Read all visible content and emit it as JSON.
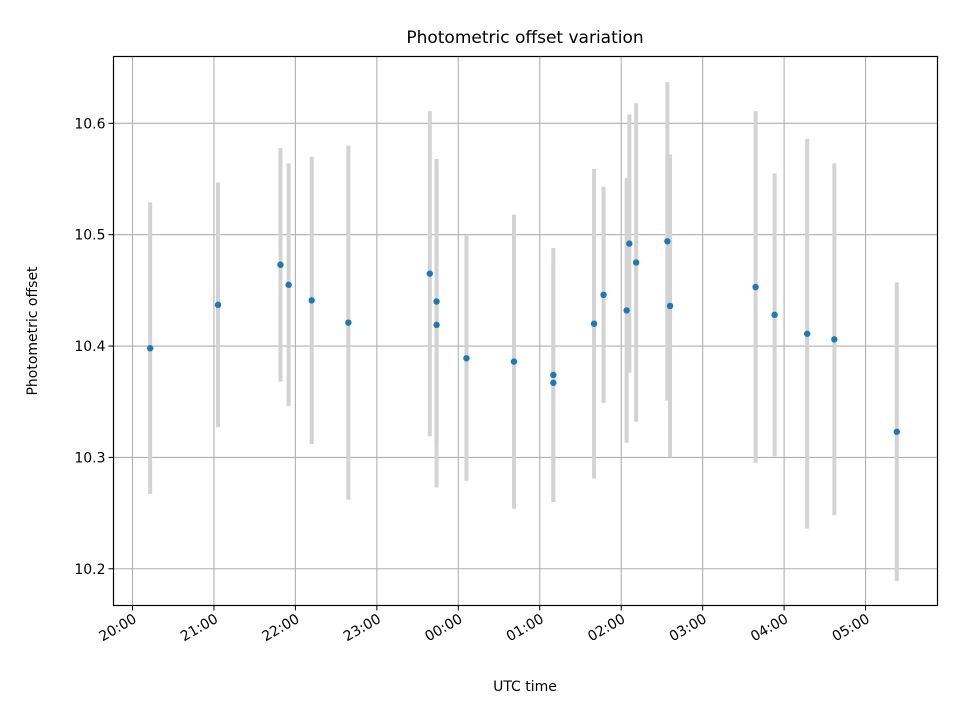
{
  "chart_data": {
    "type": "scatter",
    "title": "Photometric offset variation",
    "xlabel": "UTC time",
    "ylabel": "Photometric offset",
    "x_tick_labels": [
      "20:00",
      "21:00",
      "22:00",
      "23:00",
      "00:00",
      "01:00",
      "02:00",
      "03:00",
      "04:00",
      "05:00"
    ],
    "x_ticks": [
      "20:00",
      "21:00",
      "22:00",
      "23:00",
      "00:00",
      "01:00",
      "02:00",
      "03:00",
      "04:00",
      "05:00"
    ],
    "xlim": [
      "19:46",
      "05:53"
    ],
    "y_ticks": [
      10.2,
      10.3,
      10.4,
      10.5,
      10.6
    ],
    "y_tick_labels": [
      "10.2",
      "10.3",
      "10.4",
      "10.5",
      "10.6"
    ],
    "ylim": [
      10.167,
      10.66
    ],
    "grid": true,
    "point_color": "#1f77b4",
    "errorbar_color": "#d3d3d3",
    "points": [
      {
        "x": "20:13",
        "y": 10.398,
        "yerr": 0.131
      },
      {
        "x": "21:03",
        "y": 10.437,
        "yerr": 0.11
      },
      {
        "x": "21:49",
        "y": 10.473,
        "yerr": 0.105
      },
      {
        "x": "21:55",
        "y": 10.455,
        "yerr": 0.109
      },
      {
        "x": "22:12",
        "y": 10.441,
        "yerr": 0.129
      },
      {
        "x": "22:39",
        "y": 10.421,
        "yerr": 0.159
      },
      {
        "x": "23:39",
        "y": 10.465,
        "yerr": 0.146
      },
      {
        "x": "23:44",
        "y": 10.44,
        "yerr": 0.128
      },
      {
        "x": "23:44",
        "y": 10.419,
        "yerr": 0.146
      },
      {
        "x": "00:06",
        "y": 10.389,
        "yerr": 0.11
      },
      {
        "x": "00:41",
        "y": 10.386,
        "yerr": 0.132
      },
      {
        "x": "01:10",
        "y": 10.374,
        "yerr": 0.114
      },
      {
        "x": "01:10",
        "y": 10.367,
        "yerr": 0.107
      },
      {
        "x": "01:40",
        "y": 10.42,
        "yerr": 0.139
      },
      {
        "x": "01:47",
        "y": 10.446,
        "yerr": 0.097
      },
      {
        "x": "02:04",
        "y": 10.432,
        "yerr": 0.119
      },
      {
        "x": "02:06",
        "y": 10.492,
        "yerr": 0.116
      },
      {
        "x": "02:11",
        "y": 10.475,
        "yerr": 0.143
      },
      {
        "x": "02:34",
        "y": 10.494,
        "yerr": 0.143
      },
      {
        "x": "02:36",
        "y": 10.436,
        "yerr": 0.136
      },
      {
        "x": "03:39",
        "y": 10.453,
        "yerr": 0.158
      },
      {
        "x": "03:53",
        "y": 10.428,
        "yerr": 0.127
      },
      {
        "x": "04:17",
        "y": 10.411,
        "yerr": 0.175
      },
      {
        "x": "04:37",
        "y": 10.406,
        "yerr": 0.158
      },
      {
        "x": "05:23",
        "y": 10.323,
        "yerr": 0.134
      }
    ]
  }
}
